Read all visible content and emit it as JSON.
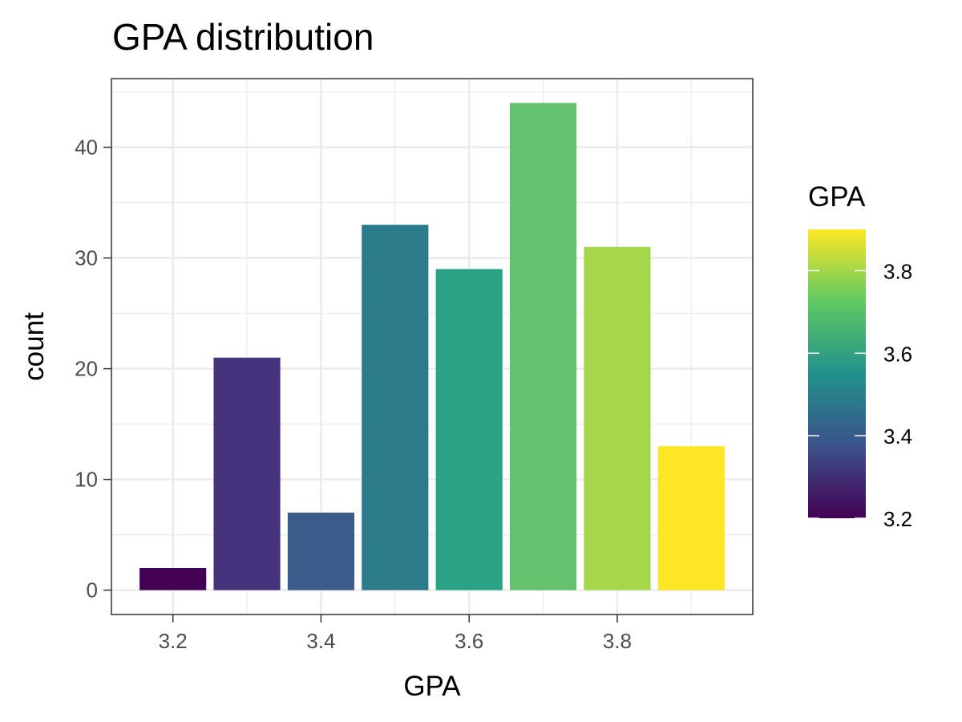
{
  "chart_data": {
    "type": "bar",
    "title": "GPA distribution",
    "xlabel": "GPA",
    "ylabel": "count",
    "x": [
      3.2,
      3.3,
      3.4,
      3.5,
      3.6,
      3.7,
      3.8,
      3.9
    ],
    "values": [
      2,
      21,
      7,
      33,
      29,
      44,
      31,
      13
    ],
    "bar_colors": [
      "#440154",
      "#46337e",
      "#3b5b8a",
      "#2c7b8a",
      "#29a286",
      "#64c16d",
      "#a6d64a",
      "#fde725"
    ],
    "xlim": [
      3.117,
      3.983
    ],
    "ylim": [
      -2.2,
      46.2
    ],
    "x_ticks": [
      3.2,
      3.4,
      3.6,
      3.8
    ],
    "x_tick_labels": [
      "3.2",
      "3.4",
      "3.6",
      "3.8"
    ],
    "y_ticks": [
      0,
      10,
      20,
      30,
      40
    ],
    "y_tick_labels": [
      "0",
      "10",
      "20",
      "30",
      "40"
    ],
    "grid": true,
    "legend": {
      "title": "GPA",
      "position": "right",
      "type": "colorbar",
      "range": [
        3.2,
        3.9
      ],
      "ticks": [
        3.2,
        3.4,
        3.6,
        3.8
      ],
      "tick_labels": [
        "3.2",
        "3.4",
        "3.6",
        "3.8"
      ],
      "colors": [
        "#440154",
        "#3b528b",
        "#21918c",
        "#5ec962",
        "#fde725"
      ]
    }
  }
}
